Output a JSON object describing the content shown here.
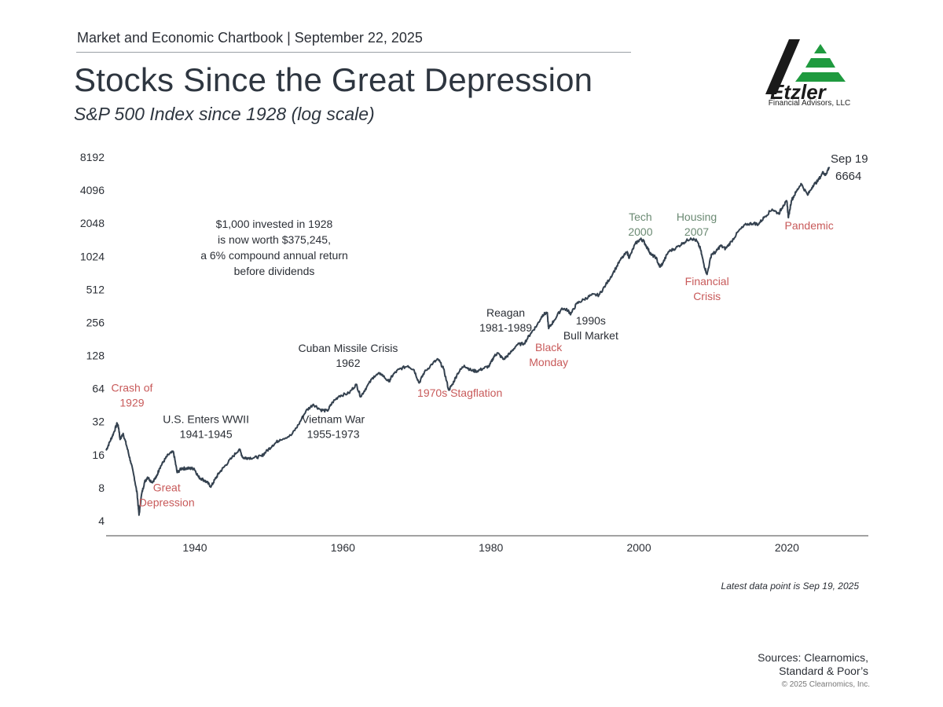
{
  "header": {
    "chartbook_line": "Market and Economic Chartbook | September 22, 2025",
    "title": "Stocks Since the Great Depression",
    "subtitle": "S&P 500 Index since 1928 (log scale)"
  },
  "logo": {
    "name": "Etzler",
    "subtext": "Financial Advisors, LLC",
    "colors": {
      "dark": "#1a1a1a",
      "green": "#1f9a3f"
    }
  },
  "chart_data": {
    "type": "line",
    "title": "Stocks Since the Great Depression",
    "subtitle": "S&P 500 Index since 1928 (log scale)",
    "y_scale": "log2",
    "ylim": [
      4,
      8192
    ],
    "xlim": [
      1928,
      2031
    ],
    "y_ticks": [
      "4",
      "8",
      "16",
      "32",
      "64",
      "128",
      "256",
      "512",
      "1024",
      "2048",
      "4096",
      "8192"
    ],
    "x_ticks": [
      "1940",
      "1960",
      "1980",
      "2000",
      "2020"
    ],
    "grid": false,
    "series": [
      {
        "name": "",
        "color": "#34414f",
        "x": [
          1928.0,
          1928.5,
          1929.0,
          1929.5,
          1929.7,
          1929.9,
          1930.3,
          1930.8,
          1931.3,
          1931.8,
          1932.2,
          1932.45,
          1932.8,
          1933.2,
          1933.6,
          1934.2,
          1934.8,
          1935.2,
          1935.8,
          1936.4,
          1937.1,
          1937.6,
          1938.2,
          1938.7,
          1939.3,
          1939.9,
          1940.5,
          1941.1,
          1941.6,
          1942.2,
          1942.7,
          1943.3,
          1944.0,
          1945.0,
          1946.0,
          1946.5,
          1947.0,
          1948.0,
          1949.0,
          1949.6,
          1950.5,
          1951.5,
          1953.0,
          1954.0,
          1955.0,
          1956.0,
          1957.0,
          1957.9,
          1958.6,
          1959.5,
          1960.8,
          1961.8,
          1962.4,
          1963.2,
          1964.2,
          1965.1,
          1966.2,
          1966.8,
          1967.6,
          1968.8,
          1969.6,
          1970.3,
          1971.0,
          1972.2,
          1972.9,
          1973.6,
          1974.3,
          1974.8,
          1975.5,
          1976.4,
          1977.3,
          1978.0,
          1978.9,
          1979.8,
          1980.4,
          1980.9,
          1981.7,
          1982.5,
          1983.5,
          1984.5,
          1985.4,
          1986.2,
          1987.0,
          1987.6,
          1987.8,
          1988.5,
          1989.6,
          1990.4,
          1990.8,
          1991.6,
          1992.6,
          1993.6,
          1994.6,
          1995.5,
          1996.5,
          1997.5,
          1998.4,
          1998.7,
          1999.5,
          2000.2,
          2000.6,
          2001.2,
          2001.7,
          2002.3,
          2002.8,
          2003.2,
          2004.0,
          2005.0,
          2006.0,
          2007.0,
          2007.8,
          2008.3,
          2008.8,
          2009.2,
          2009.8,
          2010.4,
          2011.0,
          2011.7,
          2012.5,
          2013.5,
          2014.5,
          2015.5,
          2016.1,
          2017.0,
          2018.0,
          2018.9,
          2019.5,
          2020.0,
          2020.2,
          2020.6,
          2021.2,
          2021.9,
          2022.8,
          2023.5,
          2024.2,
          2024.9,
          2025.2,
          2025.5,
          2025.72
        ],
        "values": [
          17.5,
          21,
          25,
          31,
          28,
          22,
          25,
          19,
          14,
          10,
          7,
          4.5,
          7,
          9,
          10,
          9,
          10,
          12,
          14,
          16,
          17,
          11,
          12,
          12,
          12,
          12,
          10,
          9.5,
          9,
          8.2,
          9.5,
          11,
          12.5,
          15,
          18,
          15,
          15,
          15,
          15.5,
          17,
          19.5,
          22,
          24,
          30,
          40,
          46,
          41,
          40,
          48,
          55,
          58,
          70,
          54,
          66,
          83,
          88,
          74,
          86,
          96,
          103,
          95,
          72,
          90,
          110,
          118,
          97,
          62,
          70,
          88,
          104,
          94,
          92,
          97,
          103,
          125,
          135,
          118,
          132,
          160,
          165,
          205,
          240,
          300,
          315,
          225,
          265,
          345,
          330,
          305,
          380,
          415,
          455,
          455,
          560,
          720,
          950,
          1120,
          990,
          1330,
          1470,
          1420,
          1200,
          1050,
          1000,
          820,
          880,
          1130,
          1220,
          1360,
          1500,
          1420,
          1200,
          850,
          700,
          1070,
          1120,
          1280,
          1200,
          1400,
          1750,
          2000,
          2050,
          2000,
          2350,
          2750,
          2500,
          2980,
          3230,
          2300,
          3300,
          3900,
          4700,
          3700,
          4500,
          5000,
          6000,
          5600,
          6200,
          6664
        ]
      }
    ],
    "end_label": {
      "date": "Sep 19",
      "value": "6664"
    },
    "annotations": [
      {
        "text": [
          "Crash of",
          "1929"
        ],
        "color": "#c85a5a",
        "x": 1931.5,
        "y": 60
      },
      {
        "text": [
          "Great",
          "Depression"
        ],
        "color": "#c85a5a",
        "x": 1936.2,
        "y": 7.4
      },
      {
        "text": [
          "U.S. Enters WWII",
          "1941-1945"
        ],
        "color": "#2b2f36",
        "x": 1941.5,
        "y": 31
      },
      {
        "text": [
          "Vietnam War",
          "1955-1973"
        ],
        "color": "#2b2f36",
        "x": 1958.7,
        "y": 31
      },
      {
        "text": [
          "Cuban Missile Crisis",
          "1962"
        ],
        "color": "#2b2f36",
        "x": 1960.7,
        "y": 138
      },
      {
        "text": [
          "1970s Stagflation"
        ],
        "color": "#c85a5a",
        "x": 1975.8,
        "y": 54
      },
      {
        "text": [
          "Reagan",
          "1981-1989"
        ],
        "color": "#2b2f36",
        "x": 1982.0,
        "y": 290
      },
      {
        "text": [
          "Black",
          "Monday"
        ],
        "color": "#c85a5a",
        "x": 1987.8,
        "y": 140
      },
      {
        "text": [
          "1990s",
          "Bull Market"
        ],
        "color": "#2b2f36",
        "x": 1993.5,
        "y": 245
      },
      {
        "text": [
          "Tech",
          "2000"
        ],
        "color": "#6b8a73",
        "x": 2000.2,
        "y": 2150
      },
      {
        "text": [
          "Housing",
          "2007"
        ],
        "color": "#6b8a73",
        "x": 2007.8,
        "y": 2150
      },
      {
        "text": [
          "Financial",
          "Crisis"
        ],
        "color": "#c85a5a",
        "x": 2009.2,
        "y": 560
      },
      {
        "text": [
          "Pandemic"
        ],
        "color": "#c85a5a",
        "x": 2023.0,
        "y": 1800
      }
    ],
    "callout": [
      "$1,000 invested in 1928",
      "is now worth $375,245,",
      "a 6% compound annual return",
      "before dividends"
    ]
  },
  "footer": {
    "latest_note": "Latest data point is Sep 19, 2025",
    "sources_line1": "Sources: Clearnomics,",
    "sources_line2": "Standard & Poor’s",
    "copyright": "© 2025 Clearnomics, Inc."
  }
}
